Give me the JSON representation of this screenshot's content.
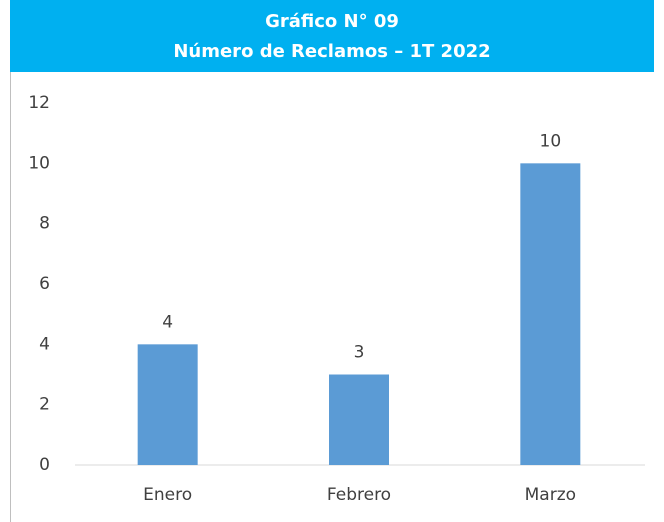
{
  "chart_data": {
    "type": "bar",
    "title": "Gráfico N° 09",
    "subtitle": "Número de Reclamos – 1T 2022",
    "categories": [
      "Enero",
      "Febrero",
      "Marzo"
    ],
    "values": [
      4,
      3,
      10
    ],
    "color": "#5b9bd5",
    "ylim": [
      0,
      12
    ],
    "yticks": [
      0,
      2,
      4,
      6,
      8,
      10,
      12
    ],
    "grid": false
  }
}
